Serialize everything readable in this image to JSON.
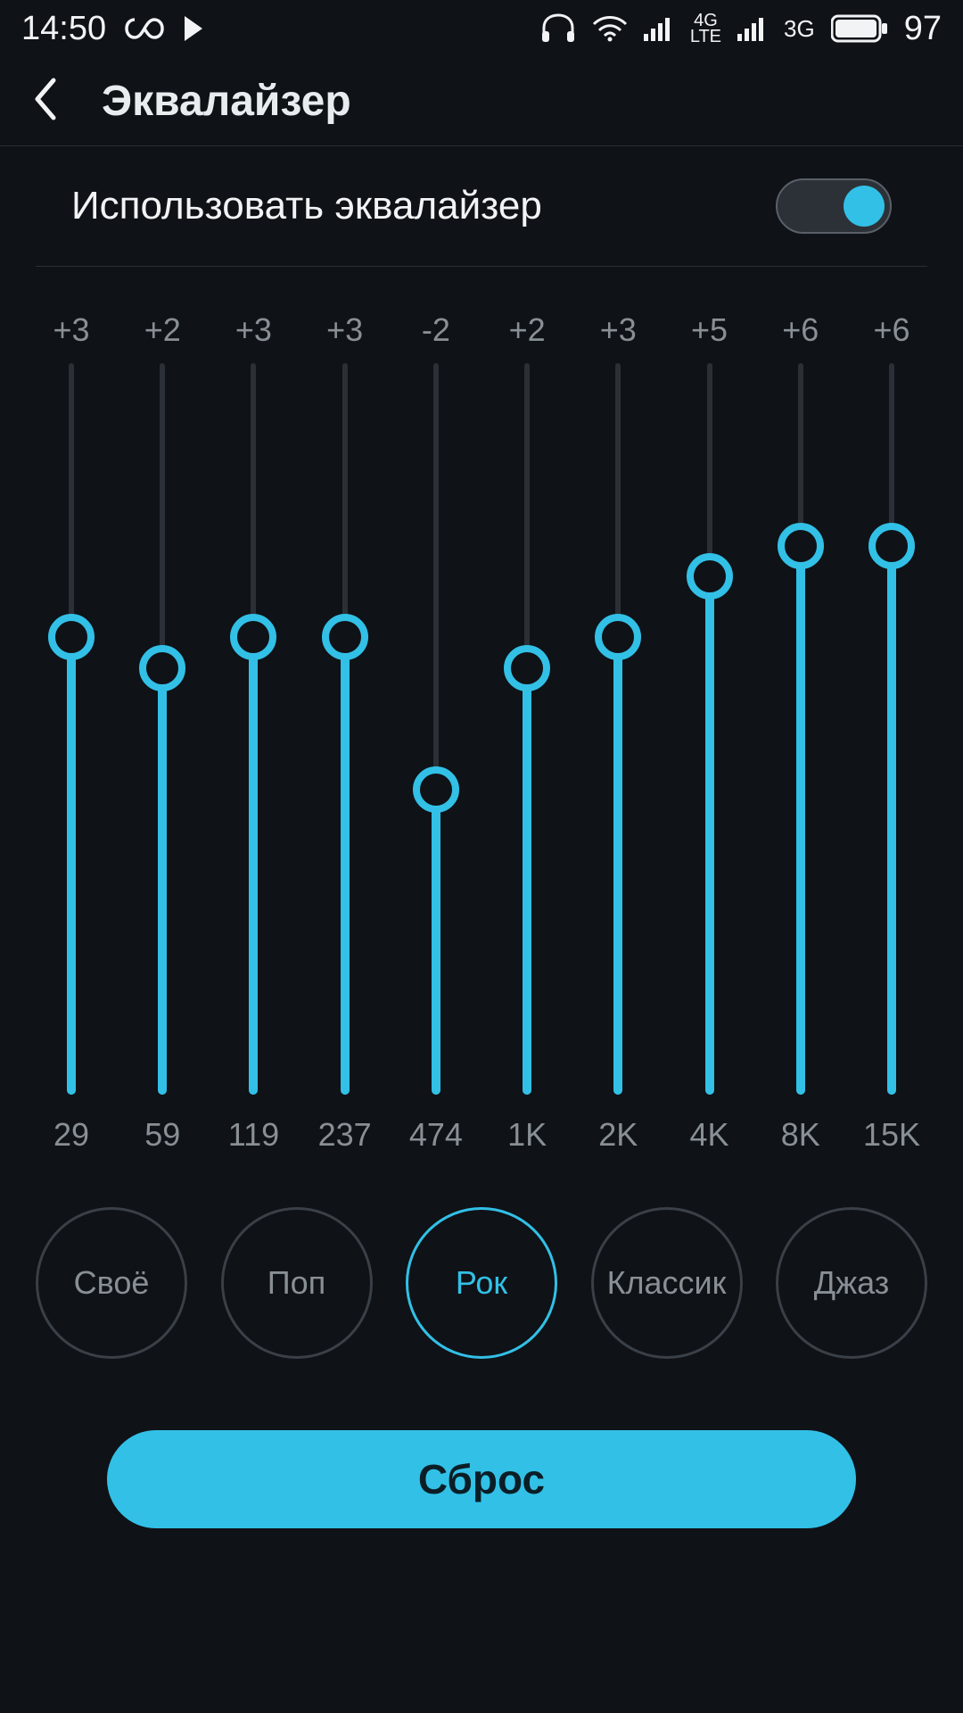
{
  "statusbar": {
    "time": "14:50",
    "battery": "97",
    "net_a": "4G\nLTE",
    "net_b": "3G",
    "icons": [
      "infinity-icon",
      "play-icon",
      "headphones-icon",
      "wifi-icon",
      "signal-a-icon",
      "signal-b-icon",
      "battery-icon"
    ]
  },
  "header": {
    "title": "Эквалайзер"
  },
  "toggle": {
    "label": "Использовать эквалайзер",
    "on": true
  },
  "colors": {
    "accent": "#32c0e6",
    "track_bg": "#2b3036",
    "divider": "#2a2f36",
    "text_muted": "#888f95",
    "bg": "#0f1217"
  },
  "eq": {
    "range": {
      "min": -12,
      "max": 12
    },
    "bands": [
      {
        "gain_label": "+3",
        "gain": 3,
        "freq": "29"
      },
      {
        "gain_label": "+2",
        "gain": 2,
        "freq": "59"
      },
      {
        "gain_label": "+3",
        "gain": 3,
        "freq": "119"
      },
      {
        "gain_label": "+3",
        "gain": 3,
        "freq": "237"
      },
      {
        "gain_label": "-2",
        "gain": -2,
        "freq": "474"
      },
      {
        "gain_label": "+2",
        "gain": 2,
        "freq": "1K"
      },
      {
        "gain_label": "+3",
        "gain": 3,
        "freq": "2K"
      },
      {
        "gain_label": "+5",
        "gain": 5,
        "freq": "4K"
      },
      {
        "gain_label": "+6",
        "gain": 6,
        "freq": "8K"
      },
      {
        "gain_label": "+6",
        "gain": 6,
        "freq": "15K"
      }
    ]
  },
  "presets": [
    {
      "label": "Своё",
      "selected": false
    },
    {
      "label": "Поп",
      "selected": false
    },
    {
      "label": "Рок",
      "selected": true
    },
    {
      "label": "Классик",
      "selected": false
    },
    {
      "label": "Джаз",
      "selected": false
    }
  ],
  "reset": {
    "label": "Сброс"
  }
}
